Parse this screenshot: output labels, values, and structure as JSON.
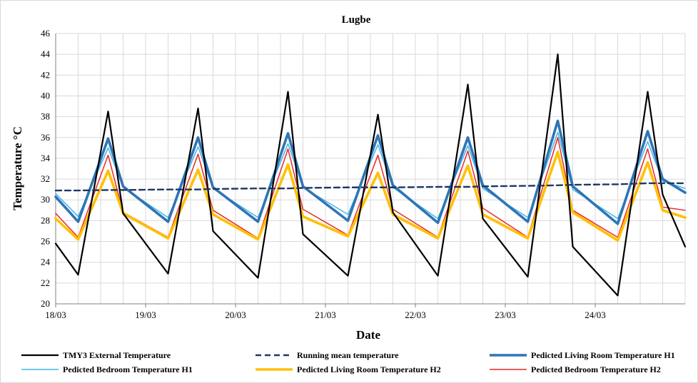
{
  "chart_data": {
    "type": "line",
    "title": "Lugbe",
    "xlabel": "Date",
    "ylabel": "Temperature °C",
    "ylim": [
      20,
      46
    ],
    "yticks": [
      20,
      22,
      24,
      26,
      28,
      30,
      32,
      34,
      36,
      38,
      40,
      42,
      44,
      46
    ],
    "xlim": [
      "18/03 00:00",
      "24/03 24:00"
    ],
    "xticks": [
      "18/03",
      "19/03",
      "20/03",
      "21/03",
      "22/03",
      "23/03",
      "24/03"
    ],
    "grid": true,
    "legend_position": "bottom",
    "x_points": [
      "18/03 00:00",
      "18/03 06:00",
      "18/03 14:00",
      "18/03 18:00",
      "19/03 06:00",
      "19/03 14:00",
      "19/03 18:00",
      "20/03 06:00",
      "20/03 14:00",
      "20/03 18:00",
      "21/03 06:00",
      "21/03 14:00",
      "21/03 18:00",
      "22/03 06:00",
      "22/03 14:00",
      "22/03 18:00",
      "23/03 06:00",
      "23/03 14:00",
      "23/03 18:00",
      "24/03 06:00",
      "24/03 14:00",
      "24/03 18:00",
      "24/03 24:00"
    ],
    "series": [
      {
        "name": "TMY3 External Temperature",
        "color": "#000000",
        "style": "solid",
        "values": [
          25.8,
          22.8,
          38.5,
          28.7,
          22.9,
          38.8,
          27.0,
          22.5,
          40.4,
          26.7,
          22.7,
          38.2,
          28.8,
          22.7,
          41.1,
          28.2,
          22.6,
          44.0,
          25.5,
          20.8,
          40.4,
          30.5,
          25.5
        ]
      },
      {
        "name": "Running mean temperature",
        "color": "#1f3864",
        "style": "dashed",
        "values": [
          30.9,
          30.9,
          30.95,
          30.95,
          31.0,
          31.0,
          31.05,
          31.1,
          31.1,
          31.15,
          31.2,
          31.2,
          31.2,
          31.25,
          31.25,
          31.3,
          31.35,
          31.4,
          31.45,
          31.5,
          31.6,
          31.6,
          31.6
        ]
      },
      {
        "name": "Pedicted Living Room Temperature H1",
        "color": "#2e75b6",
        "style": "solid",
        "values": [
          30.3,
          27.9,
          35.9,
          31.3,
          27.9,
          36.0,
          31.2,
          27.9,
          36.4,
          31.3,
          28.0,
          36.2,
          31.4,
          27.8,
          36.0,
          31.4,
          27.9,
          37.6,
          31.3,
          27.7,
          36.6,
          32.0,
          30.7
        ]
      },
      {
        "name": "Pedicted Bedroom Temperature H1",
        "color": "#41b6e6",
        "style": "solid",
        "values": [
          30.6,
          28.4,
          35.0,
          31.2,
          28.3,
          35.1,
          31.1,
          28.3,
          35.4,
          31.2,
          28.6,
          35.3,
          31.2,
          28.2,
          35.2,
          31.1,
          28.3,
          36.5,
          31.0,
          28.2,
          35.6,
          31.8,
          31.1
        ]
      },
      {
        "name": "Pedicted Living Room Temperature H2",
        "color": "#ffc000",
        "style": "solid",
        "values": [
          28.2,
          26.2,
          32.8,
          28.7,
          26.3,
          32.9,
          28.6,
          26.2,
          33.4,
          28.4,
          26.5,
          32.6,
          28.6,
          26.3,
          33.3,
          28.6,
          26.3,
          34.6,
          28.8,
          26.1,
          33.6,
          29.0,
          28.3
        ]
      },
      {
        "name": "Pedicted Bedroom Temperature H2",
        "color": "#e8292a",
        "style": "solid",
        "values": [
          28.7,
          26.4,
          34.3,
          28.8,
          26.4,
          34.4,
          29.0,
          26.3,
          34.9,
          29.1,
          26.6,
          34.3,
          29.1,
          26.4,
          34.7,
          29.2,
          26.4,
          36.0,
          29.0,
          26.4,
          34.9,
          29.3,
          29.0
        ]
      }
    ]
  }
}
